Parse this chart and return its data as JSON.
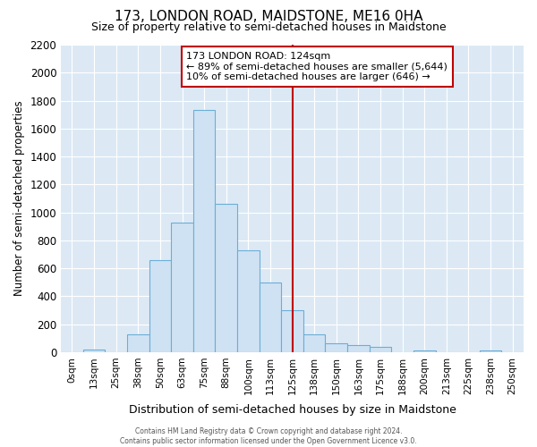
{
  "title": "173, LONDON ROAD, MAIDSTONE, ME16 0HA",
  "subtitle": "Size of property relative to semi-detached houses in Maidstone",
  "xlabel": "Distribution of semi-detached houses by size in Maidstone",
  "ylabel": "Number of semi-detached properties",
  "footer_line1": "Contains HM Land Registry data © Crown copyright and database right 2024.",
  "footer_line2": "Contains public sector information licensed under the Open Government Licence v3.0.",
  "categories": [
    "0sqm",
    "13sqm",
    "25sqm",
    "38sqm",
    "50sqm",
    "63sqm",
    "75sqm",
    "88sqm",
    "100sqm",
    "113sqm",
    "125sqm",
    "138sqm",
    "150sqm",
    "163sqm",
    "175sqm",
    "188sqm",
    "200sqm",
    "213sqm",
    "225sqm",
    "238sqm",
    "250sqm"
  ],
  "bar_values": [
    0,
    20,
    0,
    130,
    660,
    930,
    1730,
    1060,
    730,
    500,
    300,
    130,
    65,
    50,
    35,
    0,
    10,
    0,
    0,
    10,
    0
  ],
  "bar_color": "#cfe2f3",
  "bar_edge_color": "#6baed6",
  "plot_bg_color": "#dce9f5",
  "fig_bg_color": "#ffffff",
  "grid_color": "#ffffff",
  "vline_index": 10,
  "vline_color": "#c00000",
  "annotation_title": "173 LONDON ROAD: 124sqm",
  "annotation_line1": "← 89% of semi-detached houses are smaller (5,644)",
  "annotation_line2": "10% of semi-detached houses are larger (646) →",
  "annotation_box_edge_color": "#c00000",
  "ylim": [
    0,
    2200
  ],
  "yticks": [
    0,
    200,
    400,
    600,
    800,
    1000,
    1200,
    1400,
    1600,
    1800,
    2000,
    2200
  ]
}
